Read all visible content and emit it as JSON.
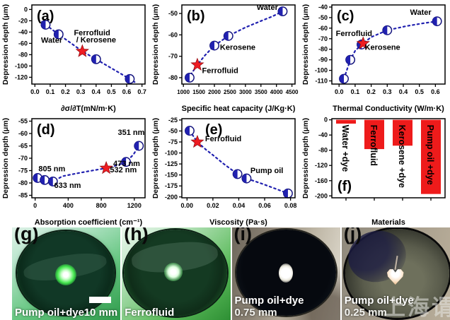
{
  "colors": {
    "marker_blue": "#2121b0",
    "marker_edge": "#13137e",
    "star_red": "#ee1c22",
    "star_edge": "#991016",
    "bar_red": "#ee1b1b",
    "axis": "#000000"
  },
  "chart_data": [
    {
      "type": "scatter",
      "panel": "(a)",
      "xlabel": "∂σ/∂T(mN/m·K)",
      "ylabel": "Depression depth (μm)",
      "xlim": [
        -0.02,
        0.72
      ],
      "ylim": [
        -132,
        8
      ],
      "xticks": [
        0.0,
        0.1,
        0.2,
        0.3,
        0.4,
        0.5,
        0.6,
        0.7
      ],
      "xtick_labels": [
        "0.0",
        "0.1",
        "0.2",
        "0.3",
        "0.4",
        "0.5",
        "0.6",
        "0.7"
      ],
      "yticks": [
        0,
        -20,
        -40,
        -60,
        -80,
        -100,
        -120
      ],
      "ytick_labels": [
        "0",
        "-20",
        "-40",
        "-60",
        "-80",
        "-100",
        "-120"
      ],
      "points": [
        [
          0.07,
          -27
        ],
        [
          0.155,
          -44
        ],
        [
          0.4,
          -88
        ],
        [
          0.62,
          -123
        ]
      ],
      "star": [
        0.31,
        -74
      ],
      "trend": [
        [
          0.045,
          -22
        ],
        [
          0.07,
          -27
        ],
        [
          0.155,
          -44
        ],
        [
          0.31,
          -74
        ],
        [
          0.4,
          -88
        ],
        [
          0.62,
          -123
        ],
        [
          0.655,
          -129
        ]
      ],
      "annotations": [
        {
          "t": "Water",
          "x": 0.04,
          "y": -59,
          "a": "start"
        },
        {
          "t": "Ferrofluid",
          "x": 0.255,
          "y": -46,
          "a": "start"
        },
        {
          "t": "/ Kerosene",
          "x": 0.27,
          "y": -58,
          "a": "start"
        }
      ]
    },
    {
      "type": "scatter",
      "panel": "(b)",
      "xlabel": "Specific heat capacity (J/Kg·K)",
      "ylabel": "Depression depth (μm)",
      "xlim": [
        950,
        4600
      ],
      "ylim": [
        -83,
        -46
      ],
      "xticks": [
        1000,
        1500,
        2000,
        2500,
        3000,
        3500,
        4000,
        4500
      ],
      "xtick_labels": [
        "1000",
        "1500",
        "2000",
        "2500",
        "3000",
        "3500",
        "4000",
        "4500"
      ],
      "xtick_font": 8,
      "yticks": [
        -50,
        -60,
        -70,
        -80
      ],
      "ytick_labels": [
        "-50",
        "-60",
        "-70",
        "-80"
      ],
      "points": [
        [
          1200,
          -80
        ],
        [
          2000,
          -65
        ],
        [
          2450,
          -60.5
        ],
        [
          4200,
          -49
        ]
      ],
      "star": [
        1450,
        -74
      ],
      "trend": [
        [
          1150,
          -80.5
        ],
        [
          1450,
          -74
        ],
        [
          1700,
          -69.5
        ],
        [
          2000,
          -65
        ],
        [
          2450,
          -60.5
        ],
        [
          3000,
          -56.5
        ],
        [
          3500,
          -53.5
        ],
        [
          3850,
          -51.5
        ],
        [
          4200,
          -49
        ]
      ],
      "annotations": [
        {
          "t": "Water",
          "x": 4050,
          "y": -48.3,
          "a": "end"
        },
        {
          "t": "Kerosene",
          "x": 2180,
          "y": -67,
          "a": "start"
        },
        {
          "t": "Ferrofluid",
          "x": 1600,
          "y": -77.8,
          "a": "start"
        }
      ]
    },
    {
      "type": "scatter",
      "panel": "(c)",
      "xlabel": "Thermal Conductivity (W/m·K)",
      "ylabel": "Depression depth (μm)",
      "xlim": [
        -0.045,
        0.66
      ],
      "ylim": [
        -113,
        -38
      ],
      "xticks": [
        0.0,
        0.1,
        0.2,
        0.3,
        0.4,
        0.5,
        0.6
      ],
      "xtick_labels": [
        "0.0",
        "0.1",
        "0.2",
        "0.3",
        "0.4",
        "0.5",
        "0.6"
      ],
      "yticks": [
        -40,
        -50,
        -60,
        -70,
        -80,
        -90,
        -100,
        -110
      ],
      "ytick_labels": [
        "-40",
        "-50",
        "-60",
        "-70",
        "-80",
        "-90",
        "-100",
        "-110"
      ],
      "points": [
        [
          0.03,
          -108
        ],
        [
          0.07,
          -90
        ],
        [
          0.14,
          -75.5
        ],
        [
          0.3,
          -62
        ],
        [
          0.61,
          -53.5
        ]
      ],
      "star": [
        0.15,
        -74.5
      ],
      "trend": [
        [
          0.03,
          -108
        ],
        [
          0.05,
          -99
        ],
        [
          0.07,
          -90
        ],
        [
          0.1,
          -81.5
        ],
        [
          0.14,
          -75.5
        ],
        [
          0.2,
          -68.5
        ],
        [
          0.3,
          -62
        ],
        [
          0.42,
          -58
        ],
        [
          0.52,
          -55.5
        ],
        [
          0.61,
          -53.5
        ]
      ],
      "annotations": [
        {
          "t": "Ferrofluid",
          "x": -0.02,
          "y": -67.5,
          "a": "start"
        },
        {
          "t": "Kerosene",
          "x": 0.16,
          "y": -80.5,
          "a": "start"
        },
        {
          "t": "Water",
          "x": 0.575,
          "y": -47.5,
          "a": "end"
        }
      ]
    },
    {
      "type": "scatter",
      "panel": "(d)",
      "xlabel": "Absorption coefficient (cm⁻¹)",
      "ylabel": "Depression depth (μm)",
      "xlim": [
        -40,
        1330
      ],
      "ylim": [
        -86,
        -54
      ],
      "xticks": [
        0,
        400,
        800,
        1200
      ],
      "xtick_labels": [
        "0",
        "400",
        "800",
        "1200"
      ],
      "yticks": [
        -55,
        -60,
        -65,
        -70,
        -75,
        -80,
        -85
      ],
      "ytick_labels": [
        "-55",
        "-60",
        "-65",
        "-70",
        "-75",
        "-80",
        "-85"
      ],
      "points": [
        [
          30,
          -78
        ],
        [
          115,
          -78.8
        ],
        [
          215,
          -79.4
        ],
        [
          1100,
          -71.5
        ],
        [
          1255,
          -65
        ]
      ],
      "star": [
        860,
        -74
      ],
      "trend": [
        [
          20,
          -78
        ],
        [
          115,
          -78.8
        ],
        [
          215,
          -79.4
        ],
        [
          330,
          -77.3
        ],
        [
          480,
          -76.3
        ],
        [
          640,
          -75.3
        ],
        [
          860,
          -74
        ],
        [
          1020,
          -72.6
        ],
        [
          1100,
          -71.5
        ],
        [
          1190,
          -68.5
        ],
        [
          1255,
          -65
        ]
      ],
      "annotations": [
        {
          "t": "805 nm",
          "x": 40,
          "y": -75.3,
          "a": "start"
        },
        {
          "t": "633 nm",
          "x": 230,
          "y": -82,
          "a": "start"
        },
        {
          "t": "473 nm",
          "x": 945,
          "y": -73.2,
          "a": "start"
        },
        {
          "t": "351 nm",
          "x": 1000,
          "y": -60.5,
          "a": "start"
        },
        {
          "t": "532 nm",
          "x": 905,
          "y": -75.7,
          "a": "start"
        }
      ]
    },
    {
      "type": "scatter",
      "panel": "(e)",
      "letter_dx": 26,
      "xlabel": "Viscosity (Pa·s)",
      "ylabel": "Depression depth (μm)",
      "xlim": [
        -0.004,
        0.0835
      ],
      "ylim": [
        -202,
        -22
      ],
      "xticks": [
        0.0,
        0.02,
        0.04,
        0.06,
        0.08
      ],
      "xtick_labels": [
        "0.00",
        "0.02",
        "0.04",
        "0.06",
        "0.08"
      ],
      "yticks": [
        -25,
        -50,
        -75,
        -100,
        -125,
        -150,
        -175,
        -200
      ],
      "ytick_labels": [
        "-25",
        "-50",
        "-75",
        "-100",
        "-125",
        "-150",
        "-175",
        "-200"
      ],
      "points": [
        [
          0.002,
          -49.5
        ],
        [
          0.039,
          -148
        ],
        [
          0.046,
          -158
        ],
        [
          0.078,
          -192
        ]
      ],
      "star": [
        0.008,
        -75
      ],
      "trend": [
        [
          0.002,
          -49.5
        ],
        [
          0.008,
          -75
        ],
        [
          0.0145,
          -92
        ],
        [
          0.021,
          -107
        ],
        [
          0.028,
          -124
        ],
        [
          0.039,
          -148
        ],
        [
          0.046,
          -158
        ],
        [
          0.058,
          -170
        ],
        [
          0.068,
          -181
        ],
        [
          0.078,
          -192
        ]
      ],
      "annotations": [
        {
          "t": "Ferrofluid",
          "x": 0.014,
          "y": -73.5,
          "a": "start"
        },
        {
          "t": "Pump oil",
          "x": 0.049,
          "y": -146,
          "a": "start"
        }
      ]
    },
    {
      "type": "bar",
      "panel": "(f)",
      "letter_pos": "bl",
      "xlabel": "Materials",
      "ylabel": "Depression depth (μm)",
      "ylim": [
        -205,
        3
      ],
      "yticks": [
        0,
        -40,
        -80,
        -120,
        -160,
        -200
      ],
      "ytick_labels": [
        "0",
        "-40",
        "-80",
        "-120",
        "-160",
        "-200"
      ],
      "categories": [
        "Water +dye",
        "Ferrofluid",
        "Kerosene +dye",
        "Pump oil +dye"
      ],
      "values": [
        -10,
        -77,
        -68,
        -195
      ]
    }
  ],
  "photos": [
    {
      "letter": "(g)",
      "label": "Pump oil+dye",
      "scale_text": "10 mm"
    },
    {
      "letter": "(h)",
      "label": "Ferrofluid"
    },
    {
      "letter": "(i)",
      "label": "Pump oil+dye",
      "thickness": "0.75 mm"
    },
    {
      "letter": "(j)",
      "label": "Pump oil+dye",
      "thickness": "0.25 mm",
      "watermark": "上海谓"
    }
  ]
}
